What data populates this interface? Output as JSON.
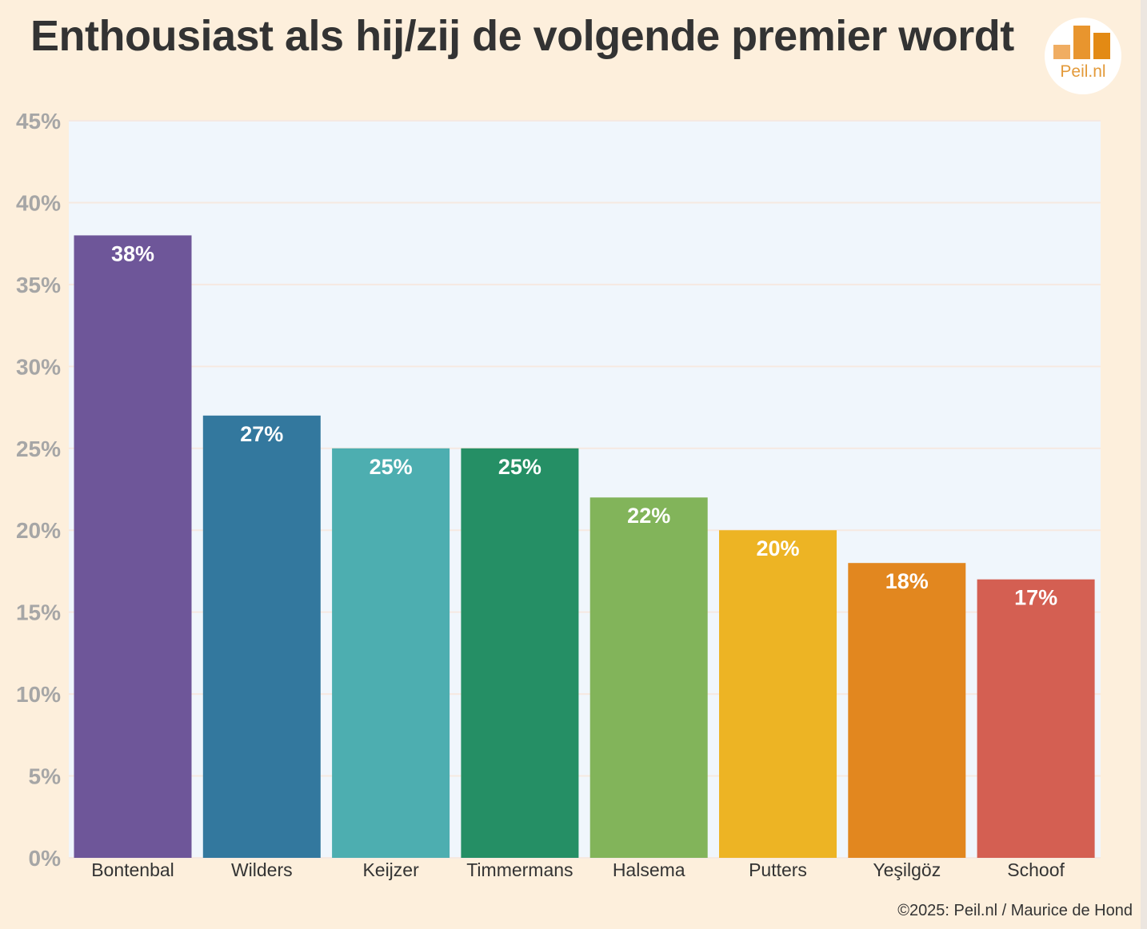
{
  "chart_data": {
    "type": "bar",
    "title": "Enthousiast als hij/zij de volgende premier wordt",
    "xlabel": "",
    "ylabel": "",
    "ylim": [
      0,
      45
    ],
    "yticks": [
      0,
      5,
      10,
      15,
      20,
      25,
      30,
      35,
      40,
      45
    ],
    "ytick_labels": [
      "0%",
      "5%",
      "10%",
      "15%",
      "20%",
      "25%",
      "30%",
      "35%",
      "40%",
      "45%"
    ],
    "grid": true,
    "categories": [
      "Bontenbal",
      "Wilders",
      "Keijzer",
      "Timmermans",
      "Halsema",
      "Putters",
      "Yeşilgöz",
      "Schoof"
    ],
    "values": [
      38,
      27,
      25,
      25,
      22,
      20,
      18,
      17
    ],
    "value_labels": [
      "38%",
      "27%",
      "25%",
      "25%",
      "22%",
      "20%",
      "18%",
      "17%"
    ],
    "colors": [
      "#6e5699",
      "#33789e",
      "#4daeb0",
      "#258f65",
      "#82b45a",
      "#edb424",
      "#e2871f",
      "#d45f52"
    ]
  },
  "logo": {
    "text": "Peil.nl",
    "colors": [
      "#f0ad62",
      "#e8952e",
      "#e38a14"
    ]
  },
  "footer": {
    "credit": "©2025: Peil.nl / Maurice de Hond"
  },
  "colors": {
    "background": "#fdefdc",
    "plot_background": "#f0f6fc",
    "grid": "#f6e9e1",
    "axis_text": "#a6a6a6",
    "title_text": "#333333"
  }
}
